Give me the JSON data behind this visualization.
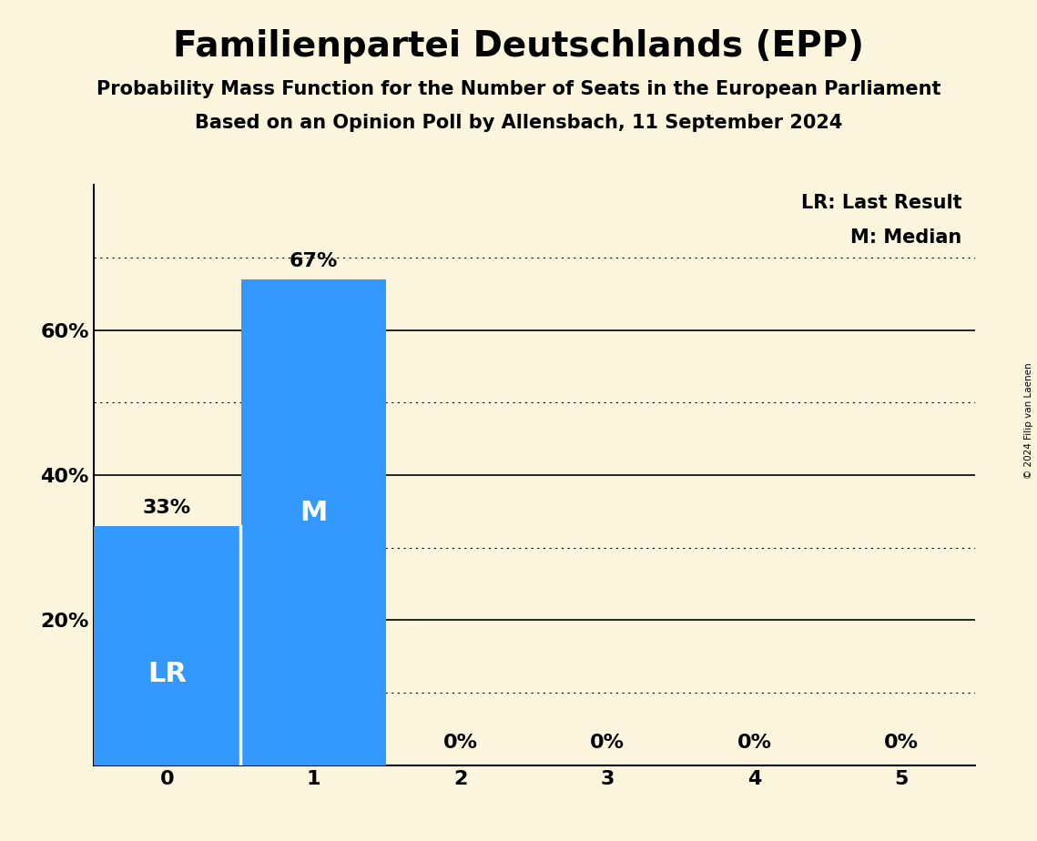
{
  "title": "Familienpartei Deutschlands (EPP)",
  "subtitle1": "Probability Mass Function for the Number of Seats in the European Parliament",
  "subtitle2": "Based on an Opinion Poll by Allensbach, 11 September 2024",
  "categories": [
    0,
    1,
    2,
    3,
    4,
    5
  ],
  "values": [
    0.33,
    0.67,
    0.0,
    0.0,
    0.0,
    0.0
  ],
  "bar_color": "#3399FF",
  "background_color": "#FAF5DC",
  "text_color": "#000000",
  "bar_labels": [
    "33%",
    "67%",
    "0%",
    "0%",
    "0%",
    "0%"
  ],
  "bar_label_above_bar": [
    true,
    true,
    false,
    false,
    false,
    false
  ],
  "last_result_bar": 0,
  "median_bar": 1,
  "lr_label": "LR",
  "m_label": "M",
  "legend_line1": "LR: Last Result",
  "legend_line2": "M: Median",
  "ylim": [
    0,
    0.8
  ],
  "yticks": [
    0.0,
    0.2,
    0.4,
    0.6
  ],
  "ytick_labels": [
    "",
    "20%",
    "40%",
    "60%"
  ],
  "solid_gridlines": [
    0.2,
    0.4,
    0.6
  ],
  "dotted_gridlines": [
    0.1,
    0.3,
    0.5,
    0.7
  ],
  "copyright_text": "© 2024 Filip van Laenen",
  "title_fontsize": 28,
  "subtitle_fontsize": 15,
  "bar_label_fontsize": 16,
  "axis_tick_fontsize": 16,
  "in_bar_label_fontsize": 22,
  "legend_fontsize": 15
}
